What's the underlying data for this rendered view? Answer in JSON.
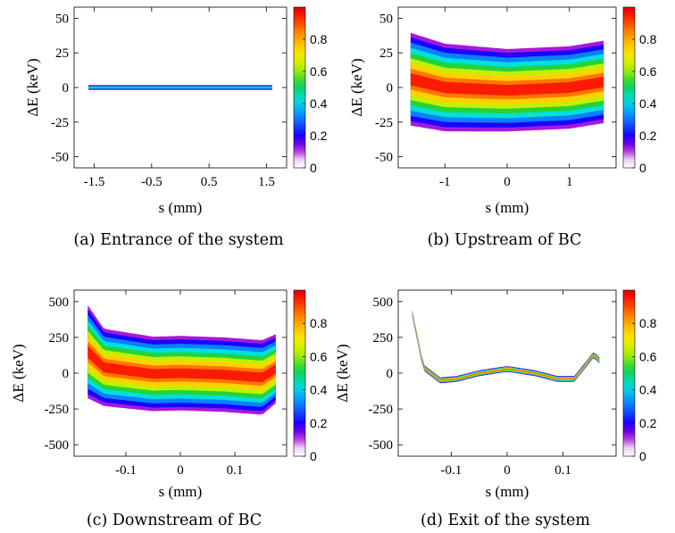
{
  "chart_data": [
    {
      "type": "heatmap",
      "caption": "(a) Entrance of the system",
      "xlabel": "s (mm)",
      "ylabel": "ΔE (keV)",
      "xlim": [
        -1.85,
        1.85
      ],
      "ylim": [
        -58,
        58
      ],
      "xticks": [
        -1.5,
        -0.5,
        0.5,
        1.5
      ],
      "yticks": [
        50,
        25,
        0,
        -25,
        -50
      ],
      "colorbar": {
        "range": [
          0,
          1
        ],
        "ticks": [
          0.8,
          0.6,
          0.4,
          0.2,
          0
        ]
      },
      "distribution": {
        "s_range": [
          -1.6,
          1.6
        ],
        "centerline": {
          "s": [
            -1.6,
            0,
            1.6
          ],
          "dE": [
            0,
            0,
            0
          ]
        },
        "half_width": {
          "s": [
            -1.6,
            0,
            1.6
          ],
          "dE": [
            2,
            2,
            2
          ]
        },
        "peak_density": 0.5
      }
    },
    {
      "type": "heatmap",
      "caption": "(b) Upstream of BC",
      "xlabel": "s (mm)",
      "ylabel": "ΔE (keV)",
      "xlim": [
        -1.75,
        1.75
      ],
      "ylim": [
        -58,
        58
      ],
      "xticks": [
        -1,
        0,
        1
      ],
      "yticks": [
        50,
        25,
        0,
        -25,
        -50
      ],
      "colorbar": {
        "range": [
          0,
          1
        ],
        "ticks": [
          0.8,
          0.6,
          0.4,
          0.2,
          0
        ]
      },
      "distribution": {
        "s_range": [
          -1.55,
          1.55
        ],
        "centerline": {
          "s": [
            -1.55,
            -1.0,
            0,
            1.0,
            1.55
          ],
          "dE": [
            6,
            0,
            -2,
            0,
            4
          ]
        },
        "half_width": {
          "s": [
            -1.55,
            -1.0,
            0,
            1.0,
            1.55
          ],
          "dE": [
            36,
            34,
            32,
            32,
            32
          ]
        },
        "peak_density": 0.95
      }
    },
    {
      "type": "heatmap",
      "caption": "(c) Downstream of BC",
      "xlabel": "s (mm)",
      "ylabel": "ΔE (keV)",
      "xlim": [
        -0.195,
        0.195
      ],
      "ylim": [
        -580,
        580
      ],
      "xticks": [
        -0.1,
        0,
        0.1
      ],
      "yticks": [
        500,
        250,
        0,
        -250,
        -500
      ],
      "colorbar": {
        "range": [
          0,
          1
        ],
        "ticks": [
          0.8,
          0.6,
          0.4,
          0.2,
          0
        ]
      },
      "distribution": {
        "s_range": [
          -0.17,
          0.175
        ],
        "centerline": {
          "s": [
            -0.17,
            -0.14,
            -0.05,
            0,
            0.08,
            0.15,
            0.175
          ],
          "dE": [
            150,
            40,
            -5,
            0,
            -10,
            -30,
            30
          ]
        },
        "half_width": {
          "s": [
            -0.17,
            -0.14,
            -0.05,
            0,
            0.08,
            0.15,
            0.175
          ],
          "dE": [
            350,
            290,
            280,
            280,
            280,
            280,
            260
          ]
        },
        "peak_density": 0.95
      }
    },
    {
      "type": "heatmap",
      "caption": "(d) Exit of the system",
      "xlabel": "s (mm)",
      "ylabel": "ΔE (keV)",
      "xlim": [
        -0.195,
        0.195
      ],
      "ylim": [
        -580,
        580
      ],
      "xticks": [
        -0.1,
        0,
        0.1
      ],
      "yticks": [
        500,
        250,
        0,
        -250,
        -500
      ],
      "colorbar": {
        "range": [
          0,
          1
        ],
        "ticks": [
          0.8,
          0.6,
          0.4,
          0.2,
          0
        ]
      },
      "distribution": {
        "s_range": [
          -0.17,
          0.165
        ],
        "centerline": {
          "s": [
            -0.17,
            -0.15,
            -0.12,
            -0.09,
            -0.05,
            0,
            0.05,
            0.09,
            0.12,
            0.145,
            0.155,
            0.165
          ],
          "dE": [
            420,
            40,
            -50,
            -40,
            0,
            30,
            0,
            -40,
            -40,
            80,
            130,
            90
          ]
        },
        "half_width": {
          "s": [
            -0.17,
            0,
            0.165
          ],
          "dE": [
            22,
            22,
            22
          ]
        },
        "peak_density": 0.9
      }
    }
  ]
}
